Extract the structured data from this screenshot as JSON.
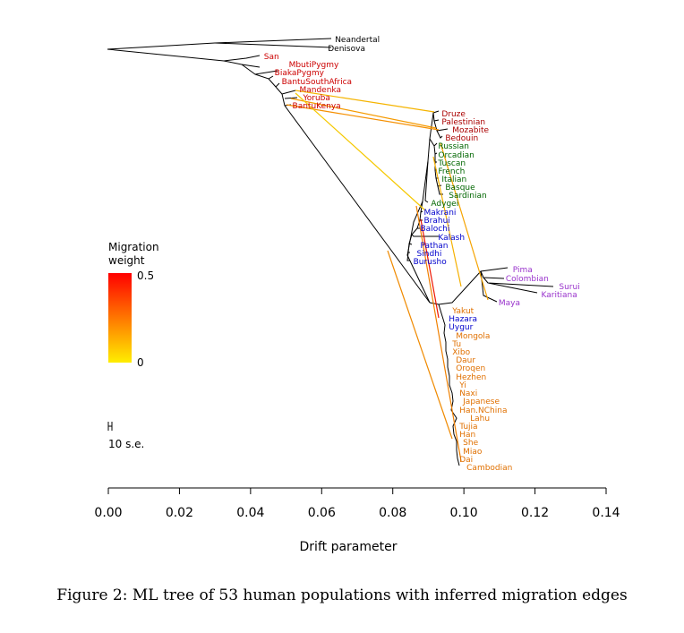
{
  "caption": "Figure 2: ML tree of 53 human populations with inferred migration edges",
  "legend": {
    "title_line1": "Migration",
    "title_line2": "weight",
    "max_label": "0.5",
    "min_label": "0",
    "gradient_colors": [
      "#ff0000",
      "#ffee00"
    ],
    "scale_bar_label": "10 s.e."
  },
  "chart_data": {
    "type": "tree",
    "xlabel": "Drift parameter",
    "xlim": [
      0,
      0.14
    ],
    "x_ticks": [
      "0.00",
      "0.02",
      "0.04",
      "0.06",
      "0.08",
      "0.10",
      "0.12",
      "0.14"
    ],
    "group_colors": {
      "archaic": "#000000",
      "african": "#cc0000",
      "west_eurasian_middle_east": "#aa0000",
      "european": "#006600",
      "central_south_asian": "#0000cc",
      "american": "#9933cc",
      "east_asian": "#e07000"
    },
    "populations": [
      {
        "name": "Neandertal",
        "group": "archaic",
        "drift": 0.063
      },
      {
        "name": "Denisova",
        "group": "archaic",
        "drift": 0.061
      },
      {
        "name": "San",
        "group": "african",
        "drift": 0.043
      },
      {
        "name": "MbutiPygmy",
        "group": "african",
        "drift": 0.05
      },
      {
        "name": "BiakaPygmy",
        "group": "african",
        "drift": 0.046
      },
      {
        "name": "BantuSouthAfrica",
        "group": "african",
        "drift": 0.048
      },
      {
        "name": "Mandenka",
        "group": "african",
        "drift": 0.053
      },
      {
        "name": "Yoruba",
        "group": "african",
        "drift": 0.054
      },
      {
        "name": "BantuKenya",
        "group": "african",
        "drift": 0.051
      },
      {
        "name": "Druze",
        "group": "west_eurasian_middle_east",
        "drift": 0.093
      },
      {
        "name": "Palestinian",
        "group": "west_eurasian_middle_east",
        "drift": 0.093
      },
      {
        "name": "Mozabite",
        "group": "west_eurasian_middle_east",
        "drift": 0.096
      },
      {
        "name": "Bedouin",
        "group": "west_eurasian_middle_east",
        "drift": 0.094
      },
      {
        "name": "Russian",
        "group": "european",
        "drift": 0.092
      },
      {
        "name": "Orcadian",
        "group": "european",
        "drift": 0.092
      },
      {
        "name": "Tuscan",
        "group": "european",
        "drift": 0.092
      },
      {
        "name": "French",
        "group": "european",
        "drift": 0.092
      },
      {
        "name": "Italian",
        "group": "european",
        "drift": 0.093
      },
      {
        "name": "Basque",
        "group": "european",
        "drift": 0.094
      },
      {
        "name": "Sardinian",
        "group": "european",
        "drift": 0.095
      },
      {
        "name": "Adygei",
        "group": "european",
        "drift": 0.09
      },
      {
        "name": "Makrani",
        "group": "central_south_asian",
        "drift": 0.088
      },
      {
        "name": "Brahui",
        "group": "central_south_asian",
        "drift": 0.088
      },
      {
        "name": "Balochi",
        "group": "central_south_asian",
        "drift": 0.087
      },
      {
        "name": "Kalash",
        "group": "central_south_asian",
        "drift": 0.092
      },
      {
        "name": "Pathan",
        "group": "central_south_asian",
        "drift": 0.087
      },
      {
        "name": "Sindhi",
        "group": "central_south_asian",
        "drift": 0.086
      },
      {
        "name": "Burusho",
        "group": "central_south_asian",
        "drift": 0.085
      },
      {
        "name": "Pima",
        "group": "american",
        "drift": 0.113
      },
      {
        "name": "Colombian",
        "group": "american",
        "drift": 0.111
      },
      {
        "name": "Surui",
        "group": "american",
        "drift": 0.126
      },
      {
        "name": "Karitiana",
        "group": "american",
        "drift": 0.121
      },
      {
        "name": "Maya",
        "group": "american",
        "drift": 0.109
      },
      {
        "name": "Yakut",
        "group": "east_asian",
        "drift": 0.096
      },
      {
        "name": "Hazara",
        "group": "central_south_asian",
        "drift": 0.095
      },
      {
        "name": "Uygur",
        "group": "central_south_asian",
        "drift": 0.095
      },
      {
        "name": "Mongola",
        "group": "east_asian",
        "drift": 0.097
      },
      {
        "name": "Tu",
        "group": "east_asian",
        "drift": 0.096
      },
      {
        "name": "Xibo",
        "group": "east_asian",
        "drift": 0.096
      },
      {
        "name": "Daur",
        "group": "east_asian",
        "drift": 0.097
      },
      {
        "name": "Oroqen",
        "group": "east_asian",
        "drift": 0.097
      },
      {
        "name": "Hezhen",
        "group": "east_asian",
        "drift": 0.097
      },
      {
        "name": "Yi",
        "group": "east_asian",
        "drift": 0.098
      },
      {
        "name": "Naxi",
        "group": "east_asian",
        "drift": 0.098
      },
      {
        "name": "Japanese",
        "group": "east_asian",
        "drift": 0.099
      },
      {
        "name": "Han.NChina",
        "group": "east_asian",
        "drift": 0.098
      },
      {
        "name": "Lahu",
        "group": "east_asian",
        "drift": 0.101
      },
      {
        "name": "Tujia",
        "group": "east_asian",
        "drift": 0.098
      },
      {
        "name": "Han",
        "group": "east_asian",
        "drift": 0.098
      },
      {
        "name": "She",
        "group": "east_asian",
        "drift": 0.099
      },
      {
        "name": "Miao",
        "group": "east_asian",
        "drift": 0.099
      },
      {
        "name": "Dai",
        "group": "east_asian",
        "drift": 0.098
      },
      {
        "name": "Cambodian",
        "group": "east_asian",
        "drift": 0.1
      }
    ]
  }
}
